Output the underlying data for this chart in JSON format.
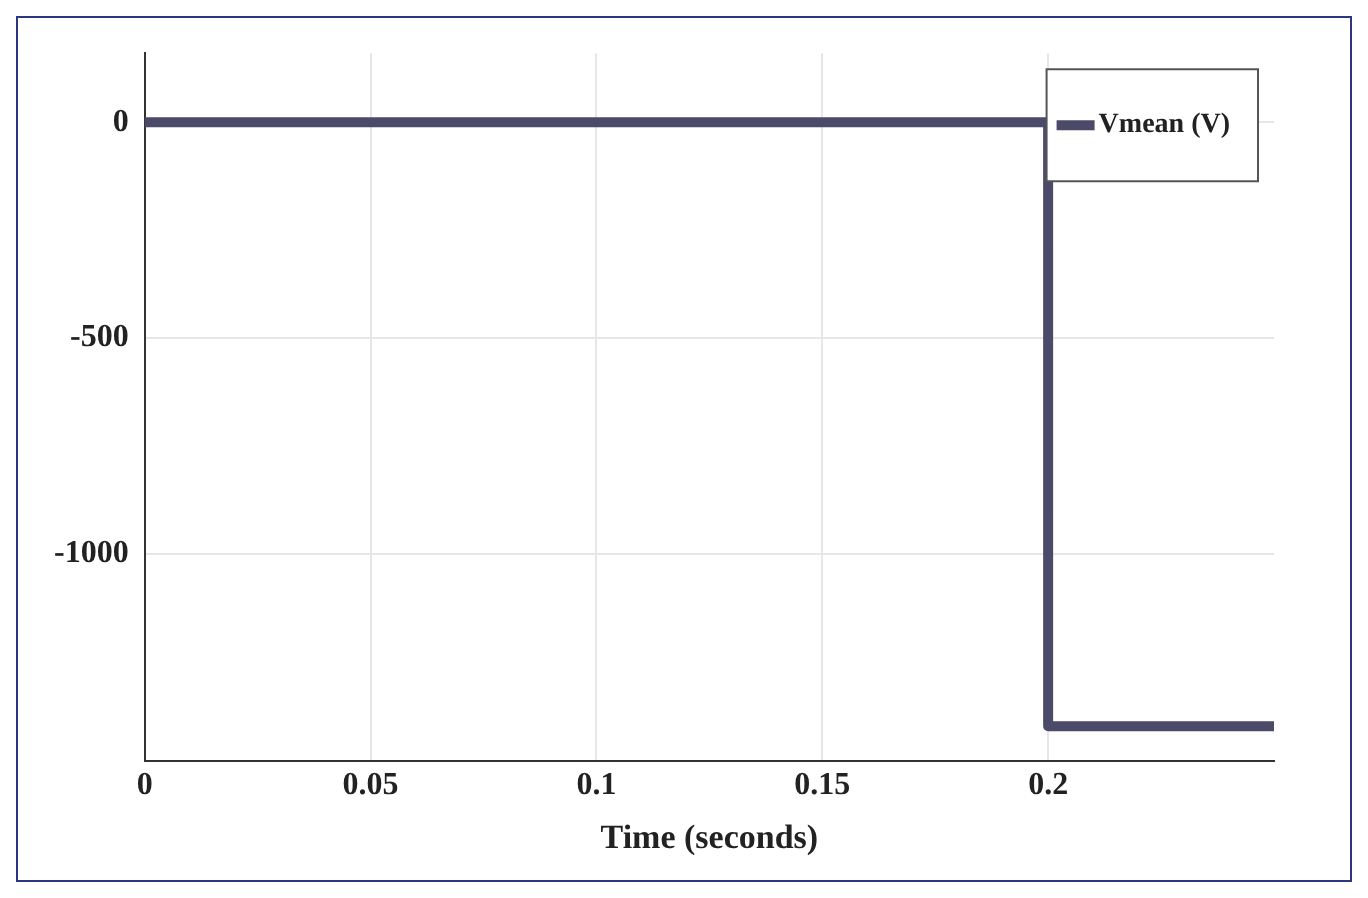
{
  "chart_data": {
    "type": "step",
    "xlabel": "Time (seconds)",
    "x": [
      0,
      0.2,
      0.25
    ],
    "series": [
      {
        "name": "Vmean (V)",
        "color": "#4b4a68",
        "values": [
          0,
          -1400,
          -1400
        ]
      }
    ],
    "xlim": [
      0,
      0.25
    ],
    "xticks": [
      0,
      0.05,
      0.1,
      0.15,
      0.2
    ],
    "ylim": [
      -1480,
      160
    ],
    "yticks": [
      -1000,
      -500,
      0
    ],
    "grid": true,
    "legend": "top right",
    "line_style": "solid",
    "marker": "none"
  }
}
